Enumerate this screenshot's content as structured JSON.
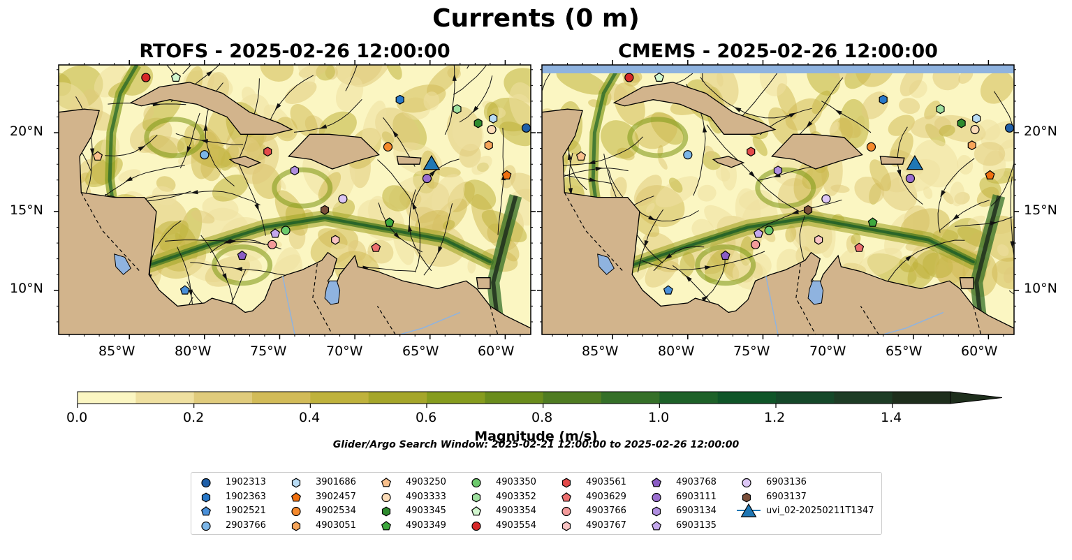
{
  "title": "Currents (0 m)",
  "panels": [
    {
      "title": "RTOFS - 2025-02-26 12:00:00"
    },
    {
      "title": "CMEMS - 2025-02-26 12:00:00"
    }
  ],
  "lon_ticks": [
    "85°W",
    "80°W",
    "75°W",
    "70°W",
    "65°W",
    "60°W"
  ],
  "lat_ticks": [
    "20°N",
    "15°N",
    "10°N"
  ],
  "map_extent": {
    "lon_min": -89.7,
    "lon_max": -58.3,
    "lat_min": 7.2,
    "lat_max": 24.3
  },
  "colors": {
    "land": "#d2b48c",
    "water_body": "#8fb3df",
    "low_speed": "#fbf6c2",
    "high_speed": "#13241a"
  },
  "colorbar": {
    "label": "Magnitude (m/s)",
    "min": 0.0,
    "max": 1.5,
    "step": 0.1,
    "extend": "max",
    "tick_labels": [
      "0.0",
      "0.2",
      "0.4",
      "0.6",
      "0.8",
      "1.0",
      "1.2",
      "1.4"
    ],
    "colors": [
      "#fbf6c2",
      "#efe0a0",
      "#e0cb7c",
      "#d2bb58",
      "#bfb23c",
      "#a5a62a",
      "#869c1e",
      "#6a8c1c",
      "#4f7c22",
      "#357028",
      "#1d6128",
      "#0f5528",
      "#154829",
      "#1d3c25",
      "#1e2e1c"
    ]
  },
  "search_window": "Glider/Argo Search Window: 2025-02-21 12:00:00 to 2025-02-26 12:00:00",
  "legend": [
    {
      "label": "1902313",
      "marker": "circle",
      "color": "#1f5fa8"
    },
    {
      "label": "1902363",
      "marker": "hexagon",
      "color": "#2878c8"
    },
    {
      "label": "1902521",
      "marker": "pentagon",
      "color": "#4a90d9"
    },
    {
      "label": "2903766",
      "marker": "circle",
      "color": "#7cb6e8"
    },
    {
      "label": "3901686",
      "marker": "hexagon",
      "color": "#b9dcf5"
    },
    {
      "label": "3902457",
      "marker": "pentagon",
      "color": "#f07010"
    },
    {
      "label": "4902534",
      "marker": "circle",
      "color": "#f5892c"
    },
    {
      "label": "4903051",
      "marker": "hexagon",
      "color": "#f7a55a"
    },
    {
      "label": "4903250",
      "marker": "pentagon",
      "color": "#f9c08c"
    },
    {
      "label": "4903333",
      "marker": "circle",
      "color": "#fcdcb8"
    },
    {
      "label": "4903345",
      "marker": "hexagon",
      "color": "#2e8b2e"
    },
    {
      "label": "4903349",
      "marker": "pentagon",
      "color": "#3ea83e"
    },
    {
      "label": "4903350",
      "marker": "circle",
      "color": "#6cc96c"
    },
    {
      "label": "4903352",
      "marker": "hexagon",
      "color": "#9fe09f"
    },
    {
      "label": "4903354",
      "marker": "pentagon",
      "color": "#d2f7cf"
    },
    {
      "label": "4903554",
      "marker": "circle",
      "color": "#d62728"
    },
    {
      "label": "4903561",
      "marker": "hexagon",
      "color": "#e34a4a"
    },
    {
      "label": "4903629",
      "marker": "pentagon",
      "color": "#ec6f6f"
    },
    {
      "label": "4903766",
      "marker": "circle",
      "color": "#f39a9a"
    },
    {
      "label": "4903767",
      "marker": "hexagon",
      "color": "#f9c3c3"
    },
    {
      "label": "4903768",
      "marker": "pentagon",
      "color": "#8a5cc4"
    },
    {
      "label": "6903111",
      "marker": "circle",
      "color": "#9b6fd0"
    },
    {
      "label": "6903134",
      "marker": "hexagon",
      "color": "#b08ee0"
    },
    {
      "label": "6903135",
      "marker": "pentagon",
      "color": "#c4a8ec"
    },
    {
      "label": "6903136",
      "marker": "circle",
      "color": "#dcc6f5"
    },
    {
      "label": "6903137",
      "marker": "hexagon",
      "color": "#7b4f3a"
    },
    {
      "label": "uvi_02-20250211T1347",
      "marker": "triangle",
      "color": "#1f77b4"
    }
  ],
  "markers": [
    {
      "id": "1902313",
      "lon": -58.6,
      "lat": 20.3
    },
    {
      "id": "1902363",
      "lon": -67.0,
      "lat": 22.1
    },
    {
      "id": "1902521",
      "lon": -81.3,
      "lat": 10.0
    },
    {
      "id": "2903766",
      "lon": -80.0,
      "lat": 18.6
    },
    {
      "id": "3901686",
      "lon": -60.8,
      "lat": 20.9
    },
    {
      "id": "3902457",
      "lon": -59.9,
      "lat": 17.3
    },
    {
      "id": "4902534",
      "lon": -67.8,
      "lat": 19.1
    },
    {
      "id": "4903051",
      "lon": -61.1,
      "lat": 19.2
    },
    {
      "id": "4903250",
      "lon": -87.1,
      "lat": 18.5
    },
    {
      "id": "4903333",
      "lon": -60.9,
      "lat": 20.2
    },
    {
      "id": "4903345",
      "lon": -61.8,
      "lat": 20.6
    },
    {
      "id": "4903349",
      "lon": -67.7,
      "lat": 14.3
    },
    {
      "id": "4903350",
      "lon": -74.6,
      "lat": 13.8
    },
    {
      "id": "4903352",
      "lon": -63.2,
      "lat": 21.5
    },
    {
      "id": "4903354",
      "lon": -81.9,
      "lat": 23.5
    },
    {
      "id": "4903554",
      "lon": -83.9,
      "lat": 23.5
    },
    {
      "id": "4903561",
      "lon": -75.8,
      "lat": 18.8
    },
    {
      "id": "4903629",
      "lon": -68.6,
      "lat": 12.7
    },
    {
      "id": "4903766",
      "lon": -75.5,
      "lat": 12.9
    },
    {
      "id": "4903767",
      "lon": -71.3,
      "lat": 13.2
    },
    {
      "id": "4903768",
      "lon": -77.5,
      "lat": 12.2
    },
    {
      "id": "6903111",
      "lon": -65.2,
      "lat": 17.1
    },
    {
      "id": "6903134",
      "lon": -74.0,
      "lat": 17.6
    },
    {
      "id": "6903135",
      "lon": -75.3,
      "lat": 13.6
    },
    {
      "id": "6903136",
      "lon": -70.8,
      "lat": 15.8
    },
    {
      "id": "6903137",
      "lon": -72.0,
      "lat": 15.1
    },
    {
      "id": "uvi_02-20250211T1347",
      "lon": -64.9,
      "lat": 18.1
    }
  ]
}
